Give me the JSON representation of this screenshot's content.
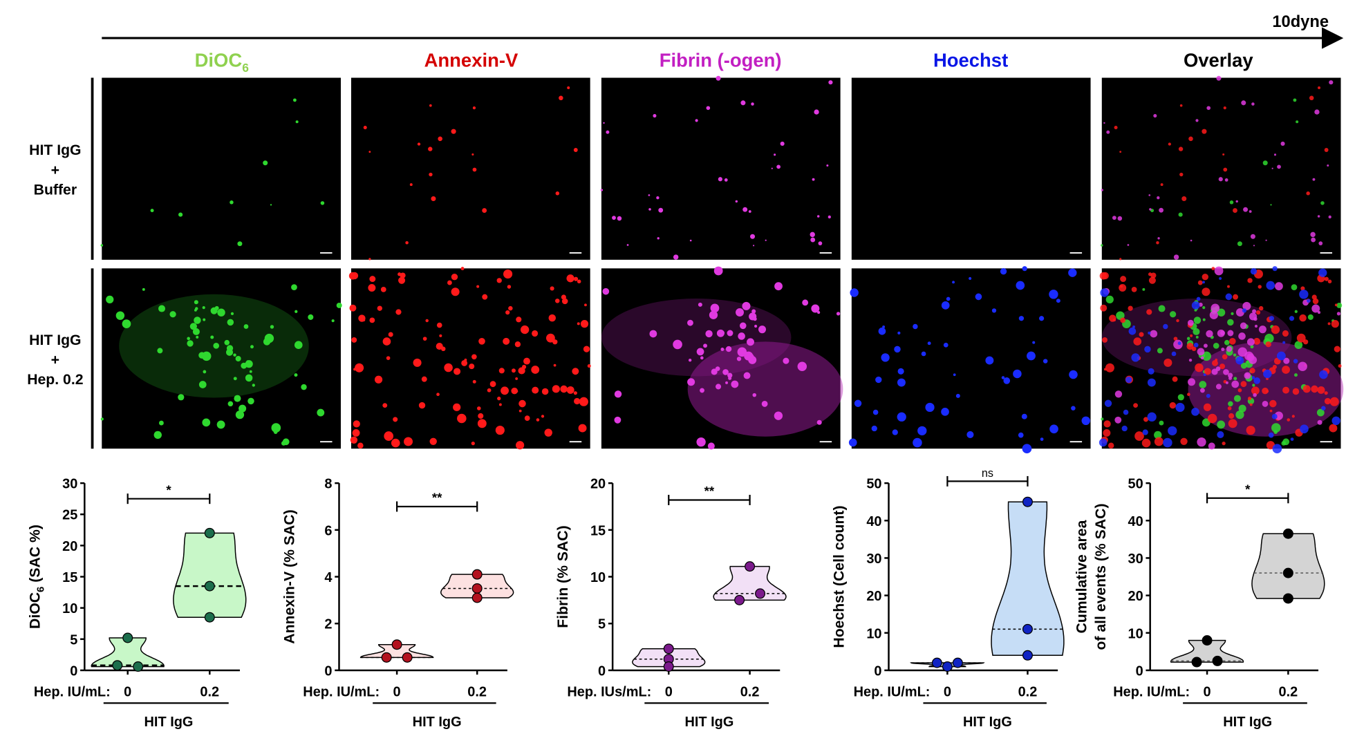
{
  "flow": {
    "label": "10dyne"
  },
  "columns": [
    {
      "label": "DiOC",
      "sub": "6",
      "color": "#8fd14f"
    },
    {
      "label": "Annexin-V",
      "sub": "",
      "color": "#d40000"
    },
    {
      "label": "Fibrin (-ogen)",
      "sub": "",
      "color": "#c21fc2"
    },
    {
      "label": "Hoechst",
      "sub": "",
      "color": "#0a16e6"
    },
    {
      "label": "Overlay",
      "sub": "",
      "color": "#000000"
    }
  ],
  "rows": [
    {
      "lines": [
        "HIT IgG",
        "+",
        "Buffer"
      ]
    },
    {
      "lines": [
        "HIT IgG",
        "+",
        "Hep. 0.2"
      ]
    }
  ],
  "chart_data": [
    {
      "type": "violin",
      "ylabel": "DiOC",
      "ylabel_sub": "6",
      "ylabel_rest": " (SAC %)",
      "ylim": [
        0,
        30
      ],
      "yticks": [
        0,
        5,
        10,
        15,
        20,
        25,
        30
      ],
      "xlabel_prefix": "Hep. IU/mL:",
      "categories": [
        "0",
        "0.2"
      ],
      "group_label": "HIT IgG",
      "groups": [
        {
          "values": [
            5.2,
            0.6,
            0.8
          ],
          "median": 0.8
        },
        {
          "values": [
            22,
            13.5,
            8.5
          ],
          "median": 13.5
        }
      ],
      "significance": {
        "label": "*",
        "level": 27.5
      },
      "fill": "#c8f7c8",
      "point": "#1b6e4c",
      "median_style": "thick-dashed"
    },
    {
      "type": "violin",
      "ylabel": "Annexin-V (% SAC)",
      "ylim": [
        0,
        8
      ],
      "yticks": [
        0,
        2,
        4,
        6,
        8
      ],
      "xlabel_prefix": "Hep. IU/mL:",
      "categories": [
        "0",
        "0.2"
      ],
      "group_label": "HIT IgG",
      "groups": [
        {
          "values": [
            1.1,
            0.55,
            0.55
          ],
          "median": 0.55
        },
        {
          "values": [
            4.1,
            3.5,
            3.1
          ],
          "median": 3.5
        }
      ],
      "significance": {
        "label": "**",
        "level": 7.0
      },
      "fill": "#fde1e1",
      "point": "#b3121f",
      "median_style": "dashed"
    },
    {
      "type": "violin",
      "ylabel": "Fibrin (% SAC)",
      "ylim": [
        0,
        20
      ],
      "yticks": [
        0,
        5,
        10,
        15,
        20
      ],
      "xlabel_prefix": "Hep. IUs/mL:",
      "categories": [
        "0",
        "0.2"
      ],
      "group_label": "HIT IgG",
      "groups": [
        {
          "values": [
            2.3,
            1.2,
            0.4
          ],
          "median": 1.2
        },
        {
          "values": [
            11.1,
            8.2,
            7.5
          ],
          "median": 8.2
        }
      ],
      "significance": {
        "label": "**",
        "level": 18.2
      },
      "fill": "#f2e0f6",
      "point": "#7b1a8c",
      "median_style": "dashed"
    },
    {
      "type": "violin",
      "ylabel": "Hoechst (Cell count)",
      "ylim": [
        0,
        50
      ],
      "yticks": [
        0,
        10,
        20,
        30,
        40,
        50
      ],
      "xlabel_prefix": "Hep. IU/mL:",
      "categories": [
        "0",
        "0.2"
      ],
      "group_label": "HIT IgG",
      "groups": [
        {
          "values": [
            1,
            2,
            2
          ],
          "median": 2
        },
        {
          "values": [
            45,
            11,
            4
          ],
          "median": 11
        }
      ],
      "significance": {
        "label": "ns",
        "level": 50.5
      },
      "fill": "#c6ddf6",
      "point": "#1024c4",
      "median_style": "dashed"
    },
    {
      "type": "violin",
      "ylabel": "Cumulative area",
      "ylabel_line2": "of all events (% SAC)",
      "ylim": [
        0,
        50
      ],
      "yticks": [
        0,
        10,
        20,
        30,
        40,
        50
      ],
      "xlabel_prefix": "Hep. IU/mL:",
      "categories": [
        "0",
        "0.2"
      ],
      "group_label": "HIT IgG",
      "groups": [
        {
          "values": [
            8,
            2.5,
            2.2
          ],
          "median": 2.5
        },
        {
          "values": [
            36.5,
            26,
            19.2
          ],
          "median": 26
        }
      ],
      "significance": {
        "label": "*",
        "level": 46
      },
      "fill": "#d4d4d4",
      "point": "#000000",
      "median_style": "dashed"
    }
  ]
}
